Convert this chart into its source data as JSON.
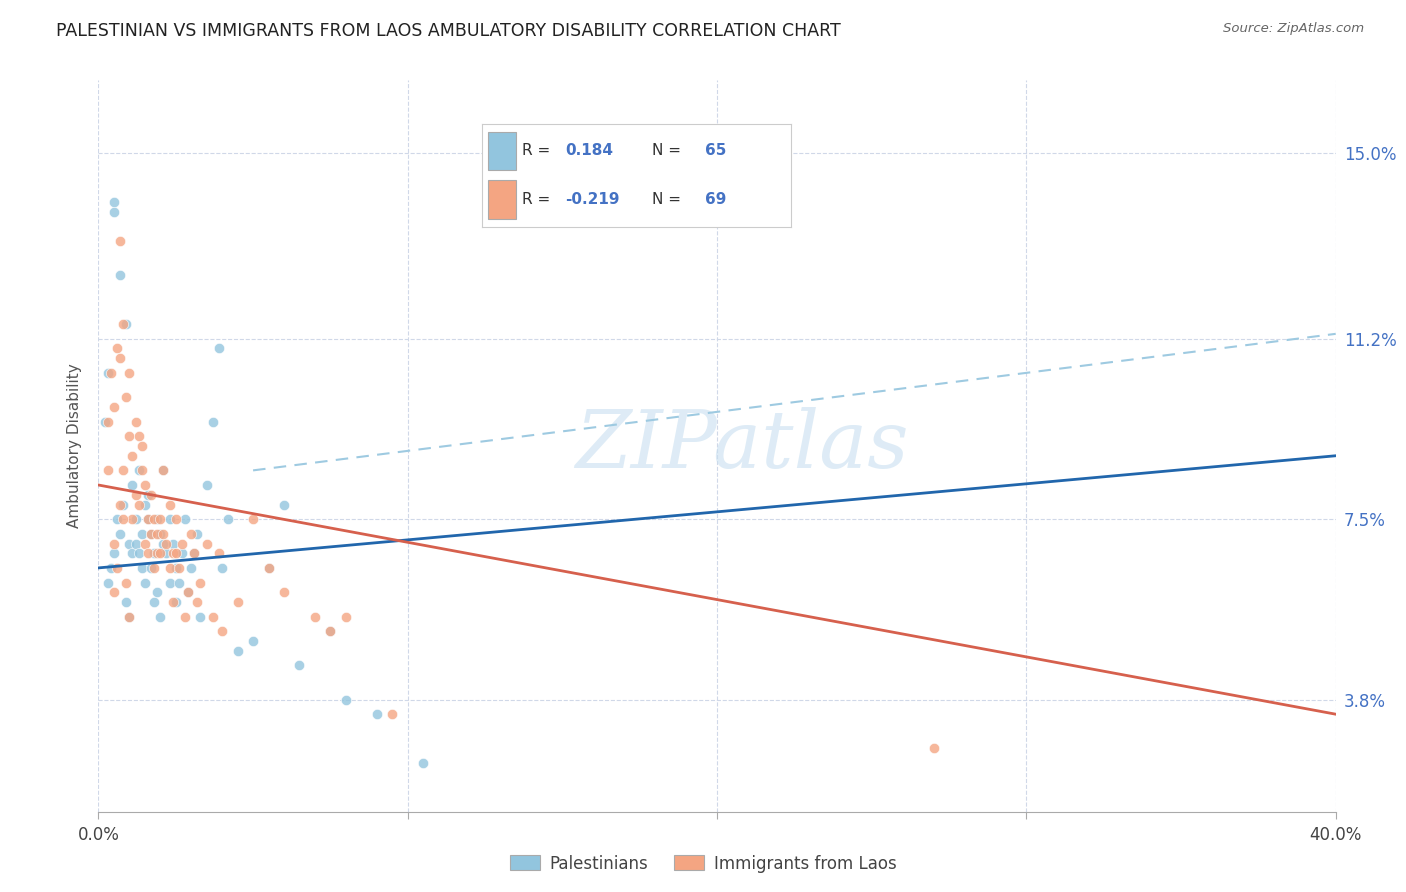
{
  "title": "PALESTINIAN VS IMMIGRANTS FROM LAOS AMBULATORY DISABILITY CORRELATION CHART",
  "source": "Source: ZipAtlas.com",
  "ylabel": "Ambulatory Disability",
  "yticks": [
    3.8,
    7.5,
    11.2,
    15.0
  ],
  "ytick_labels": [
    "3.8%",
    "7.5%",
    "11.2%",
    "15.0%"
  ],
  "xmin": 0.0,
  "xmax": 40.0,
  "ymin": 1.5,
  "ymax": 16.5,
  "color_blue": "#92c5de",
  "color_pink": "#f4a582",
  "line_blue": "#2166ac",
  "line_pink": "#d6604d",
  "line_dash": "#9ecae1",
  "watermark_color": "#c8dff0",
  "palestinians_x": [
    0.3,
    0.4,
    0.5,
    0.6,
    0.7,
    0.8,
    0.9,
    1.0,
    1.0,
    1.1,
    1.1,
    1.2,
    1.2,
    1.3,
    1.3,
    1.4,
    1.4,
    1.5,
    1.5,
    1.6,
    1.6,
    1.7,
    1.7,
    1.8,
    1.8,
    1.9,
    1.9,
    2.0,
    2.0,
    2.1,
    2.1,
    2.2,
    2.3,
    2.3,
    2.4,
    2.5,
    2.5,
    2.6,
    2.7,
    2.8,
    2.9,
    3.0,
    3.1,
    3.2,
    3.3,
    3.5,
    3.7,
    3.9,
    4.0,
    4.2,
    4.5,
    5.0,
    5.5,
    6.0,
    6.5,
    7.5,
    8.0,
    9.0,
    10.5,
    0.2,
    0.3,
    0.5,
    0.5,
    0.7,
    0.9
  ],
  "palestinians_y": [
    6.2,
    6.5,
    6.8,
    7.5,
    7.2,
    7.8,
    5.8,
    7.0,
    5.5,
    8.2,
    6.8,
    7.5,
    7.0,
    8.5,
    6.8,
    7.2,
    6.5,
    7.8,
    6.2,
    8.0,
    7.5,
    7.2,
    6.5,
    6.8,
    5.8,
    7.5,
    6.0,
    7.2,
    5.5,
    8.5,
    7.0,
    6.8,
    6.2,
    7.5,
    7.0,
    6.5,
    5.8,
    6.2,
    6.8,
    7.5,
    6.0,
    6.5,
    6.8,
    7.2,
    5.5,
    8.2,
    9.5,
    11.0,
    6.5,
    7.5,
    4.8,
    5.0,
    6.5,
    7.8,
    4.5,
    5.2,
    3.8,
    3.5,
    2.5,
    9.5,
    10.5,
    14.0,
    13.8,
    12.5,
    11.5
  ],
  "laos_x": [
    0.3,
    0.4,
    0.5,
    0.6,
    0.7,
    0.7,
    0.8,
    0.8,
    0.9,
    1.0,
    1.0,
    1.1,
    1.1,
    1.2,
    1.2,
    1.3,
    1.3,
    1.4,
    1.4,
    1.5,
    1.5,
    1.6,
    1.6,
    1.7,
    1.7,
    1.8,
    1.8,
    1.9,
    1.9,
    2.0,
    2.0,
    2.1,
    2.1,
    2.2,
    2.3,
    2.3,
    2.4,
    2.4,
    2.5,
    2.6,
    2.7,
    2.8,
    2.9,
    3.0,
    3.1,
    3.2,
    3.3,
    3.5,
    3.7,
    3.9,
    4.0,
    4.5,
    5.0,
    5.5,
    6.0,
    7.0,
    7.5,
    8.0,
    9.5,
    0.3,
    0.5,
    0.5,
    0.6,
    0.7,
    0.8,
    0.9,
    27.0,
    1.0,
    2.5
  ],
  "laos_y": [
    9.5,
    10.5,
    9.8,
    11.0,
    10.8,
    13.2,
    11.5,
    8.5,
    10.0,
    10.5,
    9.2,
    8.8,
    7.5,
    9.5,
    8.0,
    9.2,
    7.8,
    9.0,
    8.5,
    8.2,
    7.0,
    7.5,
    6.8,
    8.0,
    7.2,
    7.5,
    6.5,
    7.2,
    6.8,
    7.5,
    6.8,
    8.5,
    7.2,
    7.0,
    6.5,
    7.8,
    6.8,
    5.8,
    7.5,
    6.5,
    7.0,
    5.5,
    6.0,
    7.2,
    6.8,
    5.8,
    6.2,
    7.0,
    5.5,
    6.8,
    5.2,
    5.8,
    7.5,
    6.5,
    6.0,
    5.5,
    5.2,
    5.5,
    3.5,
    8.5,
    7.0,
    6.0,
    6.5,
    7.8,
    7.5,
    6.2,
    2.8,
    5.5,
    6.8
  ],
  "blue_line_x0": 0.0,
  "blue_line_y0": 6.5,
  "blue_line_x1": 40.0,
  "blue_line_y1": 8.8,
  "pink_line_x0": 0.0,
  "pink_line_y0": 8.2,
  "pink_line_x1": 40.0,
  "pink_line_y1": 3.5,
  "dash_line_x0": 5.0,
  "dash_line_y0": 8.5,
  "dash_line_x1": 40.0,
  "dash_line_y1": 11.3
}
